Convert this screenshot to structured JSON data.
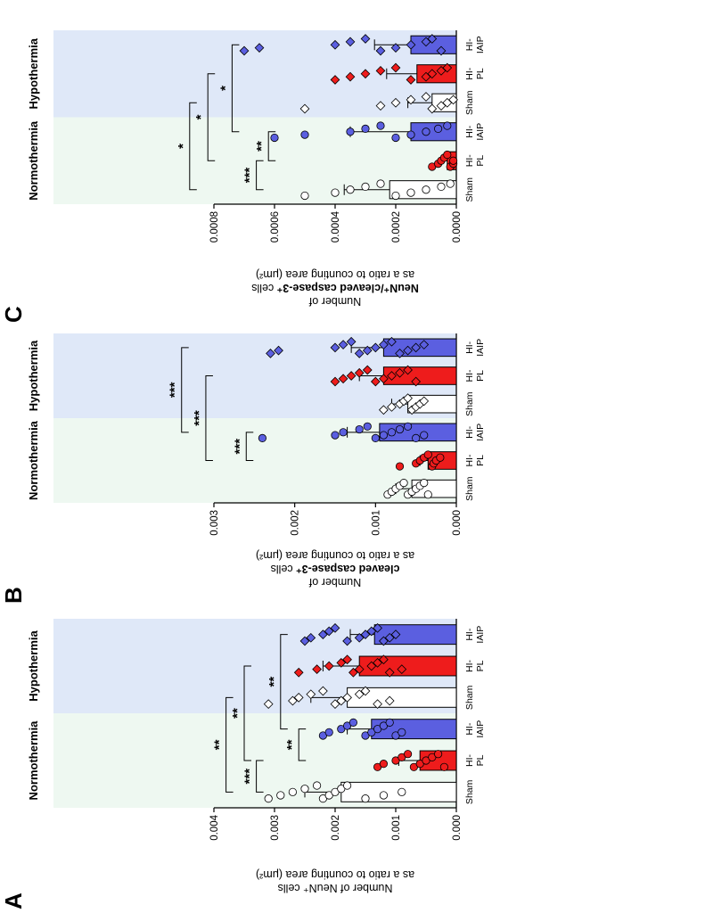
{
  "panels": [
    {
      "letter": "A",
      "ylabel_lines": [
        {
          "pre": "Number of ",
          "bold": "",
          "post": "NeuN⁺ cells"
        },
        {
          "pre": "as a ratio to counting area (μm²)",
          "bold": "",
          "post": ""
        }
      ]
    },
    {
      "letter": "B",
      "ylabel_lines": [
        {
          "pre": "Number of",
          "bold": "",
          "post": ""
        },
        {
          "pre": "",
          "bold": "cleaved caspase-3⁺",
          "post": " cells"
        },
        {
          "pre": "as a  ratio to counting area (μm²)",
          "bold": "",
          "post": ""
        }
      ]
    },
    {
      "letter": "C",
      "ylabel_lines": [
        {
          "pre": "Number of",
          "bold": "",
          "post": ""
        },
        {
          "pre": "",
          "bold": "NeuN⁺/cleaved caspase-3⁺",
          "post": " cells"
        },
        {
          "pre": "as a ratio to counting area (μm²)",
          "bold": "",
          "post": ""
        }
      ]
    }
  ],
  "colors": {
    "normothermia_bg": "#eef8f1",
    "hypothermia_bg": "#dfe8f8",
    "sham": "#ffffff",
    "hi_pl": "#ee1c1c",
    "hi_iaip": "#5b5fe0"
  },
  "chart_data": [
    {
      "type": "bar",
      "panel": "A",
      "groups": [
        "Normothermia",
        "Hypothermia"
      ],
      "categories": [
        "Sham",
        "HI-\nPL",
        "HI-\nIAIP",
        "Sham",
        "HI-\nPL",
        "HI-\nIAIP"
      ],
      "values": [
        0.0019,
        0.0006,
        0.0014,
        0.0018,
        0.0016,
        0.00135
      ],
      "errors": [
        0.0006,
        0.00035,
        0.0004,
        0.0006,
        0.0006,
        0.0004
      ],
      "markers": [
        "circle",
        "circle",
        "circle",
        "diamond",
        "diamond",
        "diamond"
      ],
      "points": [
        [
          0.0031,
          0.0029,
          0.0027,
          0.0025,
          0.0023,
          0.0022,
          0.0021,
          0.002,
          0.0019,
          0.0018,
          0.0015,
          0.0012,
          0.0009
        ],
        [
          0.0013,
          0.0012,
          0.001,
          0.0009,
          0.0008,
          0.0007,
          0.0006,
          0.0005,
          0.0004,
          0.0003,
          0.0002
        ],
        [
          0.0022,
          0.0021,
          0.0019,
          0.0018,
          0.0017,
          0.0015,
          0.0014,
          0.0013,
          0.0012,
          0.0011,
          0.001,
          0.0009
        ],
        [
          0.0031,
          0.0027,
          0.0026,
          0.0024,
          0.0022,
          0.002,
          0.0019,
          0.0018,
          0.0016,
          0.0015,
          0.0013,
          0.0011
        ],
        [
          0.0026,
          0.0023,
          0.0021,
          0.0019,
          0.0018,
          0.0017,
          0.0016,
          0.0014,
          0.0013,
          0.0012,
          0.0011,
          0.0009
        ],
        [
          0.0025,
          0.0024,
          0.0022,
          0.0021,
          0.002,
          0.0018,
          0.0016,
          0.0015,
          0.0014,
          0.0013,
          0.0012,
          0.0011,
          0.001
        ]
      ],
      "ylim": [
        0,
        0.004
      ],
      "yticks": [
        "0.000",
        "0.001",
        "0.002",
        "0.003",
        "0.004"
      ],
      "brackets": [
        {
          "from": 0,
          "to": 1,
          "level": 0.0033,
          "label": "***"
        },
        {
          "from": 1,
          "to": 2,
          "level": 0.0026,
          "label": "**"
        },
        {
          "from": 2,
          "to": 5,
          "level": 0.0029,
          "label": "**"
        },
        {
          "from": 1,
          "to": 4,
          "level": 0.0035,
          "label": "**"
        },
        {
          "from": 0,
          "to": 3,
          "level": 0.0038,
          "label": "**"
        }
      ]
    },
    {
      "type": "bar",
      "panel": "B",
      "groups": [
        "Normothermia",
        "Hypothermia"
      ],
      "categories": [
        "Sham",
        "HI-\nPL",
        "HI-\nIAIP",
        "Sham",
        "HI-\nPL",
        "HI-\nIAIP"
      ],
      "values": [
        0.00055,
        0.00035,
        0.00095,
        0.0006,
        0.0009,
        0.0009
      ],
      "errors": [
        0.0002,
        0.0001,
        0.0004,
        0.0002,
        0.0003,
        0.0004
      ],
      "markers": [
        "circle",
        "circle",
        "circle",
        "diamond",
        "diamond",
        "diamond"
      ],
      "points": [
        [
          0.00085,
          0.0008,
          0.00075,
          0.0007,
          0.00065,
          0.0006,
          0.00055,
          0.0005,
          0.00045,
          0.0004,
          0.00035
        ],
        [
          0.0007,
          0.0005,
          0.00045,
          0.0004,
          0.00035,
          0.0003,
          0.00028,
          0.00025,
          0.0002
        ],
        [
          0.0024,
          0.0015,
          0.0014,
          0.0012,
          0.0011,
          0.001,
          0.0009,
          0.0008,
          0.0007,
          0.0006,
          0.0005,
          0.0004
        ],
        [
          0.0009,
          0.0008,
          0.0007,
          0.00065,
          0.0006,
          0.00055,
          0.0005,
          0.00045,
          0.0004
        ],
        [
          0.0015,
          0.0014,
          0.0013,
          0.0012,
          0.0011,
          0.001,
          0.0009,
          0.0008,
          0.0007,
          0.0006,
          0.0005
        ],
        [
          0.0023,
          0.0022,
          0.0015,
          0.0014,
          0.0013,
          0.0012,
          0.0011,
          0.001,
          0.0009,
          0.0008,
          0.0007,
          0.0006,
          0.0005,
          0.0004
        ]
      ],
      "ylim": [
        0,
        0.003
      ],
      "yticks": [
        "0.000",
        "0.001",
        "0.002",
        "0.003"
      ],
      "brackets": [
        {
          "from": 1,
          "to": 2,
          "level": 0.0026,
          "label": "***"
        },
        {
          "from": 1,
          "to": 4,
          "level": 0.0031,
          "label": "***"
        },
        {
          "from": 2,
          "to": 5,
          "level": 0.0034,
          "label": "***"
        }
      ]
    },
    {
      "type": "bar",
      "panel": "C",
      "groups": [
        "Normothermia",
        "Hypothermia"
      ],
      "categories": [
        "Sham",
        "HI-\nPL",
        "HI-\nIAIP",
        "Sham",
        "HI-\nPL",
        "HI-\nIAIP"
      ],
      "values": [
        0.00022,
        3e-05,
        0.00015,
        8e-05,
        0.00013,
        0.00015
      ],
      "errors": [
        0.00015,
        2e-05,
        0.0002,
        8e-05,
        0.0001,
        0.00012
      ],
      "markers": [
        "circle",
        "circle",
        "circle",
        "diamond",
        "diamond",
        "diamond"
      ],
      "points": [
        [
          0.0005,
          0.0004,
          0.00035,
          0.0003,
          0.00025,
          0.0002,
          0.00015,
          0.0001,
          5e-05,
          2e-05
        ],
        [
          8e-05,
          6e-05,
          5e-05,
          4e-05,
          3e-05,
          2e-05,
          1e-05,
          1e-05
        ],
        [
          0.0006,
          0.0005,
          0.00035,
          0.0003,
          0.00025,
          0.0002,
          0.00015,
          0.0001,
          6e-05,
          3e-05
        ],
        [
          0.0005,
          0.00025,
          0.0002,
          0.00015,
          0.0001,
          8e-05,
          5e-05,
          3e-05,
          1e-05
        ],
        [
          0.0004,
          0.00035,
          0.0003,
          0.00025,
          0.0002,
          0.00015,
          0.0001,
          8e-05,
          5e-05,
          3e-05
        ],
        [
          0.0007,
          0.00065,
          0.0004,
          0.00035,
          0.0003,
          0.00025,
          0.0002,
          0.00015,
          0.0001,
          8e-05,
          5e-05
        ]
      ],
      "ylim": [
        0,
        0.0008
      ],
      "yticks": [
        "0.0000",
        "0.0002",
        "0.0004",
        "0.0006",
        "0.0008"
      ],
      "brackets": [
        {
          "from": 0,
          "to": 1,
          "level": 0.00066,
          "label": "***"
        },
        {
          "from": 1,
          "to": 2,
          "level": 0.00062,
          "label": "**"
        },
        {
          "from": 2,
          "to": 5,
          "level": 0.00074,
          "label": "*"
        },
        {
          "from": 1,
          "to": 4,
          "level": 0.00082,
          "label": "*"
        },
        {
          "from": 0,
          "to": 3,
          "level": 0.00088,
          "label": "*"
        }
      ]
    }
  ]
}
